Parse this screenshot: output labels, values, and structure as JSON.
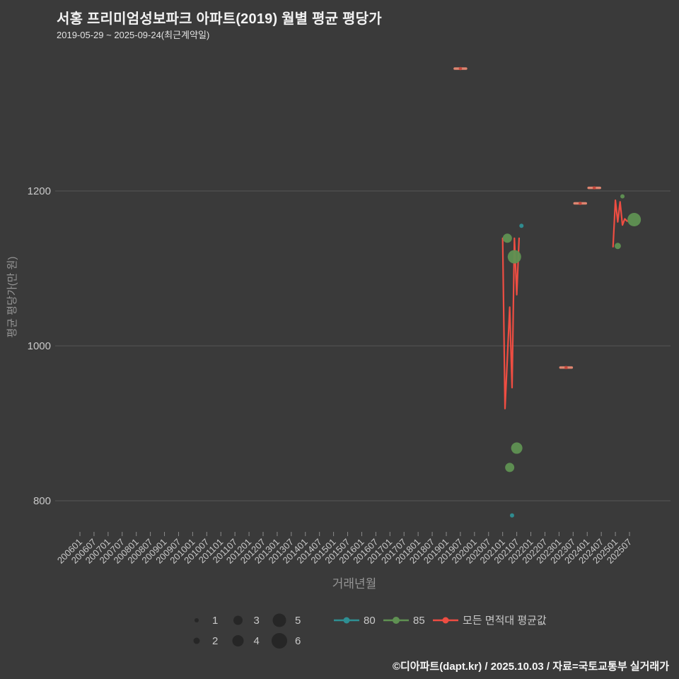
{
  "footer": {
    "text": "©디아파트(dapt.kr) / 2025.10.03 / 자료=국토교통부 실거래가"
  },
  "chart_data": {
    "type": "scatter",
    "title": "서홍 프리미엄성보파크 아파트(2019) 월별 평균 평당가",
    "subtitle": "2019-05-29 ~ 2025-09-24(최근계약일)",
    "xlabel": "거래년월",
    "ylabel": "평균 평당가(만 원)",
    "grid": true,
    "legend_position": "bottom",
    "ylim": [
      755,
      1385
    ],
    "y_ticks": [
      800,
      1000,
      1200
    ],
    "x_ticks": [
      "200601",
      "200607",
      "200701",
      "200707",
      "200801",
      "200807",
      "200901",
      "200907",
      "201001",
      "201007",
      "201101",
      "201107",
      "201201",
      "201207",
      "201301",
      "201307",
      "201401",
      "201407",
      "201501",
      "201507",
      "201601",
      "201607",
      "201701",
      "201707",
      "201801",
      "201807",
      "201901",
      "201907",
      "202001",
      "202007",
      "202101",
      "202107",
      "202201",
      "202207",
      "202301",
      "202307",
      "202401",
      "202407",
      "202501",
      "202507"
    ],
    "bubble_size_legend": {
      "counts": [
        1,
        2,
        3,
        4,
        5,
        6
      ],
      "radius_px": {
        "1": 3,
        "2": 4.5,
        "3": 6.5,
        "4": 8,
        "5": 9.5,
        "6": 11
      },
      "swatch_color": "#262626"
    },
    "series": [
      {
        "name": "80",
        "kind": "bubble",
        "color": "#2e8f93",
        "points": [
          [
            "202105",
            781,
            1
          ],
          [
            "202109",
            1155,
            1
          ]
        ]
      },
      {
        "name": "85",
        "kind": "bubble",
        "color": "#5f9152",
        "points": [
          [
            "202103",
            1139,
            3
          ],
          [
            "202104",
            843,
            3
          ],
          [
            "202106",
            1115,
            5
          ],
          [
            "202107",
            868,
            4
          ],
          [
            "202502",
            1129,
            2
          ],
          [
            "202504",
            1193,
            1
          ],
          [
            "202509",
            1163,
            5
          ]
        ]
      },
      {
        "name": "모든 면적대 평균값",
        "kind": "line",
        "color": "#ee4d42",
        "dash_color": "#de8570",
        "dash_dot_color": "#c4493e",
        "segments": [
          [
            [
              "202101",
              1139
            ],
            [
              "202102",
              919
            ],
            [
              "202104",
              1050
            ],
            [
              "202105",
              946
            ],
            [
              "202106",
              1139
            ],
            [
              "202107",
              1066
            ],
            [
              "202108",
              1139
            ]
          ],
          [
            [
              "202412",
              1128
            ],
            [
              "202501",
              1188
            ],
            [
              "202502",
              1160
            ],
            [
              "202503",
              1186
            ],
            [
              "202504",
              1156
            ],
            [
              "202505",
              1164
            ],
            [
              "202506",
              1161
            ]
          ]
        ],
        "isolated_points": [
          [
            "201907",
            1358
          ],
          [
            "202304",
            972
          ],
          [
            "202310",
            1184
          ],
          [
            "202404",
            1204
          ]
        ]
      }
    ]
  }
}
